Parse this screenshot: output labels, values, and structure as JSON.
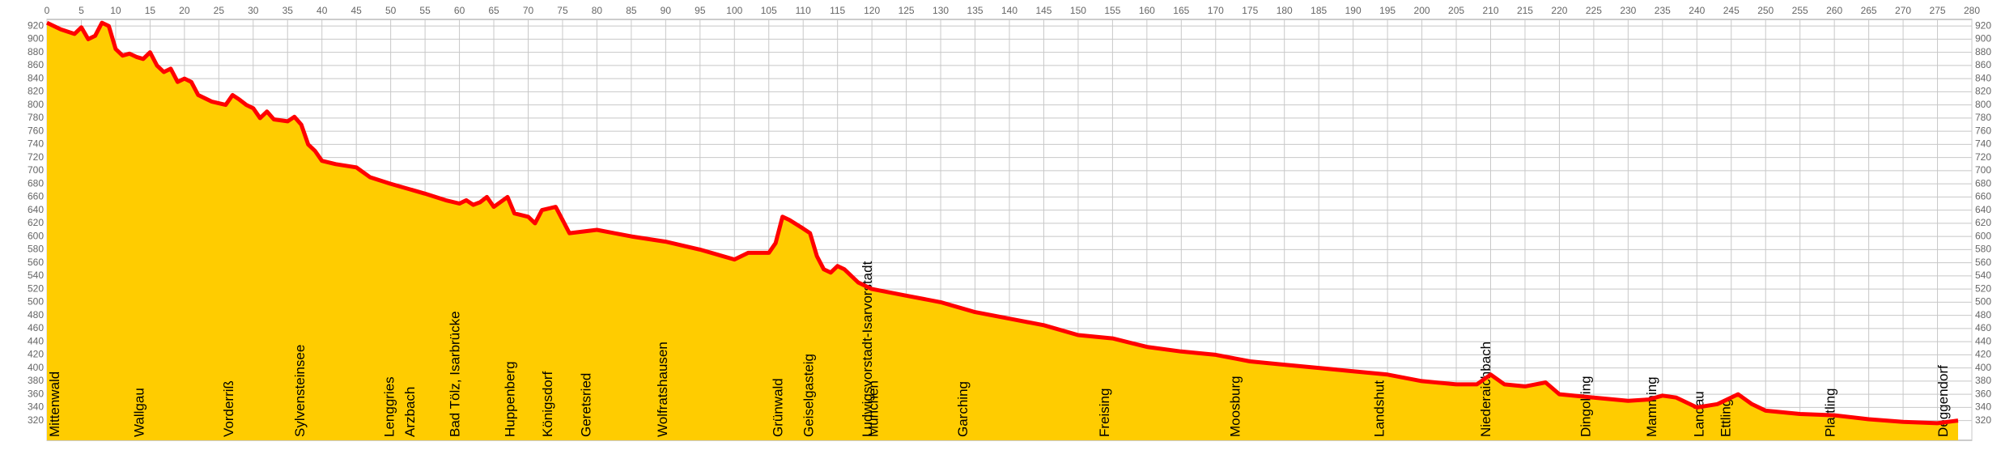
{
  "chart_data": {
    "type": "area",
    "x": [
      0,
      2,
      4,
      5,
      6,
      7,
      8,
      9,
      10,
      11,
      12,
      13,
      14,
      15,
      16,
      17,
      18,
      19,
      20,
      21,
      22,
      24,
      26,
      27,
      28,
      29,
      30,
      31,
      32,
      33,
      35,
      36,
      37,
      38,
      39,
      40,
      42,
      45,
      47,
      50,
      55,
      58,
      60,
      61,
      62,
      63,
      64,
      65,
      67,
      68,
      70,
      71,
      72,
      74,
      75,
      76,
      80,
      85,
      90,
      95,
      100,
      102,
      105,
      106,
      107,
      108,
      110,
      111,
      112,
      113,
      114,
      115,
      116,
      118,
      120,
      125,
      130,
      135,
      140,
      145,
      150,
      155,
      160,
      165,
      170,
      175,
      180,
      185,
      190,
      195,
      200,
      205,
      208,
      210,
      212,
      215,
      218,
      220,
      225,
      230,
      233,
      235,
      237,
      240,
      243,
      246,
      248,
      250,
      255,
      260,
      265,
      270,
      275,
      278
    ],
    "values": [
      925,
      915,
      908,
      918,
      900,
      905,
      925,
      920,
      885,
      875,
      878,
      873,
      870,
      880,
      860,
      850,
      855,
      835,
      840,
      835,
      815,
      805,
      800,
      815,
      808,
      800,
      795,
      780,
      790,
      778,
      775,
      782,
      770,
      740,
      730,
      715,
      710,
      705,
      690,
      680,
      665,
      655,
      650,
      655,
      648,
      652,
      660,
      645,
      660,
      635,
      630,
      620,
      640,
      645,
      625,
      605,
      610,
      600,
      592,
      580,
      565,
      575,
      575,
      590,
      630,
      625,
      612,
      605,
      570,
      550,
      545,
      555,
      550,
      530,
      520,
      510,
      500,
      485,
      475,
      465,
      450,
      445,
      432,
      425,
      420,
      410,
      405,
      400,
      395,
      390,
      380,
      375,
      375,
      390,
      375,
      372,
      378,
      360,
      355,
      350,
      352,
      358,
      355,
      340,
      345,
      360,
      345,
      335,
      330,
      328,
      322,
      318,
      316,
      320
    ],
    "color": "#ff0000",
    "fill_color": "#ffcc00",
    "xlim": [
      0,
      280
    ],
    "ylim": [
      290,
      930
    ],
    "xticks": [
      0,
      5,
      10,
      15,
      20,
      25,
      30,
      35,
      40,
      45,
      50,
      55,
      60,
      65,
      70,
      75,
      80,
      85,
      90,
      95,
      100,
      105,
      110,
      115,
      120,
      125,
      130,
      135,
      140,
      145,
      150,
      155,
      160,
      165,
      170,
      175,
      180,
      185,
      190,
      195,
      200,
      205,
      210,
      215,
      220,
      225,
      230,
      235,
      240,
      245,
      250,
      255,
      260,
      265,
      270,
      275,
      280
    ],
    "yticks": [
      320,
      340,
      360,
      380,
      400,
      420,
      440,
      460,
      480,
      500,
      520,
      540,
      560,
      580,
      600,
      620,
      640,
      660,
      680,
      700,
      720,
      740,
      760,
      780,
      800,
      820,
      840,
      860,
      880,
      900,
      920
    ],
    "grid": true,
    "annotations": [
      {
        "text": "Mittenwald",
        "x": 0.3
      },
      {
        "text": "Wallgau",
        "x": 12.6
      },
      {
        "text": "Vorderriß",
        "x": 25.6
      },
      {
        "text": "Sylvensteinsee",
        "x": 36
      },
      {
        "text": "Lenggries",
        "x": 49
      },
      {
        "text": "Arzbach",
        "x": 52
      },
      {
        "text": "Bad Tölz, Isarbrücke",
        "x": 58.5
      },
      {
        "text": "Huppenberg",
        "x": 66.5
      },
      {
        "text": "Königsdorf",
        "x": 72
      },
      {
        "text": "Geretsried",
        "x": 77.6
      },
      {
        "text": "Wolfratshausen",
        "x": 88.7
      },
      {
        "text": "Grünwald",
        "x": 105.5
      },
      {
        "text": "Geiselgasteig",
        "x": 110
      },
      {
        "text": "Ludwigsvorstadt-Isarvorstadt",
        "x": 118.5
      },
      {
        "text": "München",
        "x": 119.4
      },
      {
        "text": "Garching",
        "x": 132.4
      },
      {
        "text": "Freising",
        "x": 153
      },
      {
        "text": "Moosburg",
        "x": 172
      },
      {
        "text": "Landshut",
        "x": 193
      },
      {
        "text": "Niederaichbach",
        "x": 208.5
      },
      {
        "text": "Dingolfing",
        "x": 223
      },
      {
        "text": "Mamming",
        "x": 232.6
      },
      {
        "text": "Landau",
        "x": 239.5
      },
      {
        "text": "Ettling",
        "x": 243.4
      },
      {
        "text": "Plattling",
        "x": 258.6
      },
      {
        "text": "Deggendorf",
        "x": 275
      }
    ]
  }
}
